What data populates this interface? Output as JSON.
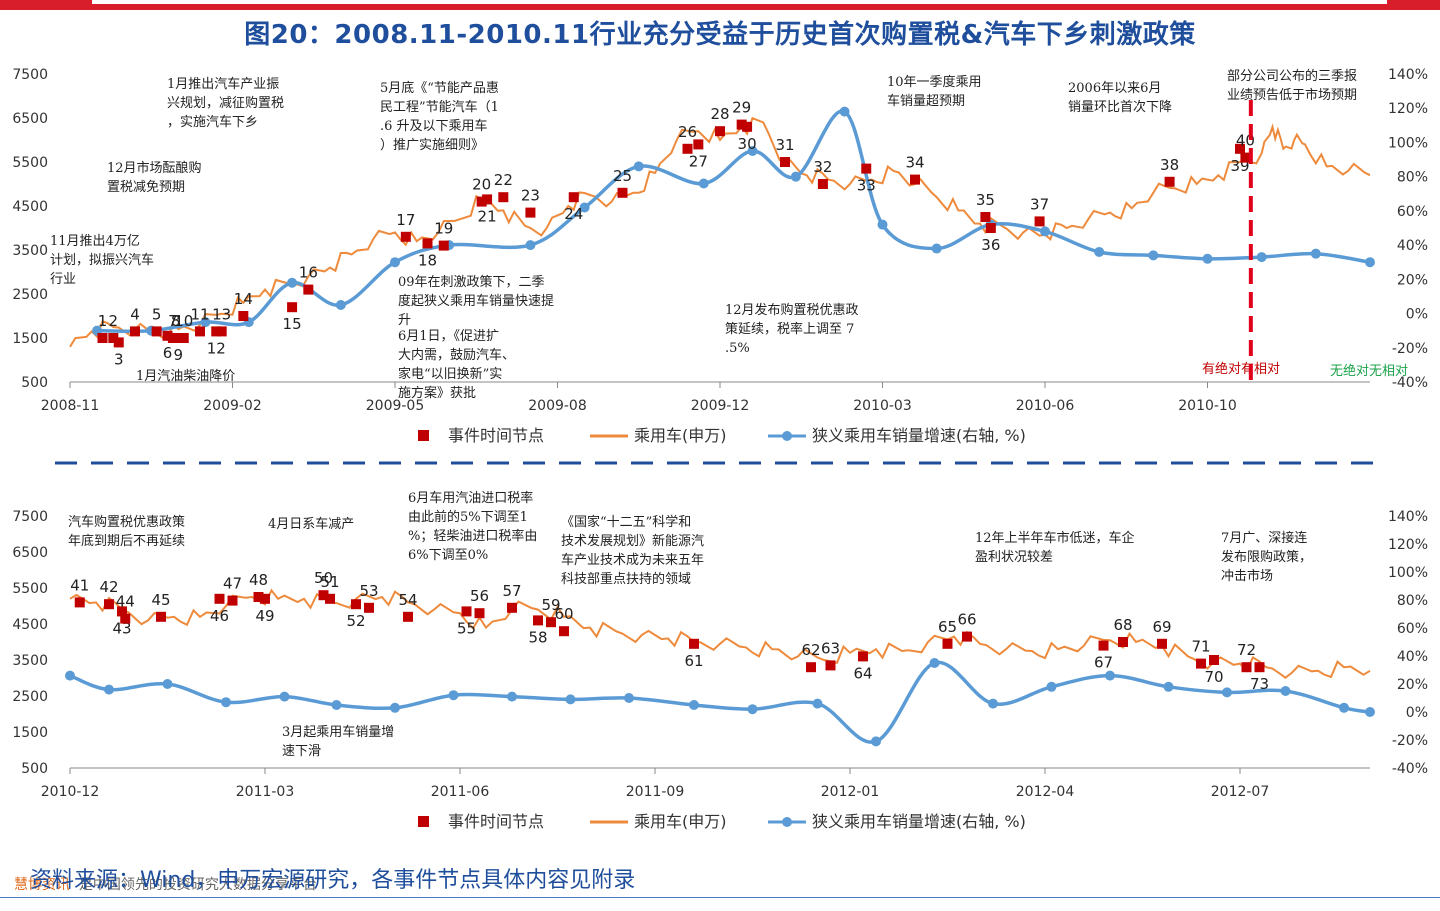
{
  "title": "图20：2008.11-2010.11行业充分受益于历史首次购置税&汽车下乡刺激政策",
  "source": "资料来源：Wind，申万宏源研究，各事件节点具体内容见附录",
  "watermark": {
    "brand": "慧博资讯",
    "text": "是中国领先的投资研究大数据分享平台"
  },
  "colors": {
    "bar": "#d81e2b",
    "title": "#1f4e9c",
    "line": "#ee8a3c",
    "growth": "#5b9bd5",
    "event": "#c00000",
    "divider": "#1f4e9c",
    "green": "#1aa24a"
  },
  "legend": [
    "事件时间节点",
    "乘用车(申万)",
    "狭义乘用车销量增速(右轴, %)"
  ],
  "chart_data": [
    {
      "type": "line",
      "left_ylim": [
        500,
        7500
      ],
      "left_yticks": [
        "7500",
        "6500",
        "5500",
        "4500",
        "3500",
        "2500",
        "1500",
        "500"
      ],
      "right_ylim": [
        -40,
        140
      ],
      "right_yticks": [
        "140%",
        "120%",
        "100%",
        "80%",
        "60%",
        "40%",
        "20%",
        "0%",
        "-20%",
        "-40%"
      ],
      "x_range_months": [
        0,
        24
      ],
      "xticks": [
        {
          "label": "2008-11",
          "m": 0
        },
        {
          "label": "2009-02",
          "m": 3
        },
        {
          "label": "2009-05",
          "m": 6
        },
        {
          "label": "2009-08",
          "m": 9
        },
        {
          "label": "2009-12",
          "m": 12
        },
        {
          "label": "2010-03",
          "m": 15
        },
        {
          "label": "2010-06",
          "m": 18
        },
        {
          "label": "2010-10",
          "m": 21
        }
      ],
      "index_series": {
        "name": "乘用车(申万)",
        "x": [
          0,
          0.4,
          0.8,
          1.2,
          1.6,
          2.0,
          2.4,
          2.8,
          3.2,
          3.6,
          4.0,
          4.4,
          4.8,
          5.2,
          5.6,
          6.0,
          6.4,
          6.8,
          7.2,
          7.6,
          8.0,
          8.4,
          8.8,
          9.2,
          9.6,
          10.0,
          10.4,
          10.8,
          11.2,
          11.6,
          12.0,
          12.4,
          12.8,
          13.2,
          13.6,
          14.0,
          14.4,
          14.8,
          15.2,
          15.6,
          16.0,
          16.4,
          16.8,
          17.2,
          17.6,
          18.0,
          18.4,
          18.8,
          19.2,
          19.6,
          20.0,
          20.4,
          20.8,
          21.2,
          21.6,
          22.0,
          22.2,
          22.4,
          22.6,
          22.8,
          23.2,
          23.6,
          24.0
        ],
        "y": [
          1300,
          1650,
          1750,
          1700,
          1600,
          1700,
          1800,
          2050,
          2300,
          2600,
          2750,
          2900,
          3100,
          3400,
          3750,
          3900,
          3700,
          3900,
          4200,
          4650,
          4400,
          4050,
          4000,
          4500,
          4750,
          4600,
          4800,
          5250,
          6000,
          6200,
          6000,
          6300,
          6400,
          5500,
          5200,
          5100,
          5000,
          5100,
          5300,
          5000,
          4700,
          4400,
          4100,
          4050,
          3900,
          3850,
          4000,
          4200,
          4350,
          4450,
          4800,
          4900,
          5000,
          5200,
          5500,
          5700,
          6300,
          5800,
          6000,
          5900,
          5400,
          5300,
          5200
        ]
      },
      "growth_series": {
        "name": "狭义乘用车销量增速(右轴, %)",
        "x": [
          0.5,
          1.5,
          2.5,
          3.3,
          4.1,
          5.0,
          6.0,
          7.0,
          8.5,
          9.5,
          10.5,
          11.7,
          12.6,
          13.4,
          14.3,
          15.0,
          16.0,
          17.0,
          18.0,
          19.0,
          20.0,
          21.0,
          22.0,
          23.0,
          24.0
        ],
        "y": [
          -10,
          -10,
          -5,
          -5,
          18,
          5,
          30,
          40,
          40,
          62,
          86,
          76,
          95,
          80,
          118,
          52,
          38,
          52,
          48,
          36,
          34,
          32,
          33,
          35,
          30
        ]
      },
      "events": [
        {
          "label": "1",
          "m": 0.6,
          "v": 1500
        },
        {
          "label": "2",
          "m": 0.8,
          "v": 1500
        },
        {
          "label": "3",
          "m": 0.9,
          "v": 1400
        },
        {
          "label": "4",
          "m": 1.2,
          "v": 1650
        },
        {
          "label": "5",
          "m": 1.6,
          "v": 1650
        },
        {
          "label": "6",
          "m": 1.8,
          "v": 1550
        },
        {
          "label": "7",
          "m": 1.9,
          "v": 1500
        },
        {
          "label": "8",
          "m": 1.95,
          "v": 1500
        },
        {
          "label": "9",
          "m": 2.0,
          "v": 1500
        },
        {
          "label": "10",
          "m": 2.1,
          "v": 1500
        },
        {
          "label": "11",
          "m": 2.4,
          "v": 1650
        },
        {
          "label": "12",
          "m": 2.7,
          "v": 1650
        },
        {
          "label": "13",
          "m": 2.8,
          "v": 1650
        },
        {
          "label": "14",
          "m": 3.2,
          "v": 2000
        },
        {
          "label": "15",
          "m": 4.1,
          "v": 2200
        },
        {
          "label": "16",
          "m": 4.4,
          "v": 2600
        },
        {
          "label": "17",
          "m": 6.2,
          "v": 3800
        },
        {
          "label": "18",
          "m": 6.6,
          "v": 3650
        },
        {
          "label": "19",
          "m": 6.9,
          "v": 3600
        },
        {
          "label": "20",
          "m": 7.6,
          "v": 4600
        },
        {
          "label": "21",
          "m": 7.7,
          "v": 4650
        },
        {
          "label": "22",
          "m": 8.0,
          "v": 4700
        },
        {
          "label": "23",
          "m": 8.5,
          "v": 4350
        },
        {
          "label": "24",
          "m": 9.3,
          "v": 4700
        },
        {
          "label": "25",
          "m": 10.2,
          "v": 4800
        },
        {
          "label": "26",
          "m": 11.4,
          "v": 5800
        },
        {
          "label": "27",
          "m": 11.6,
          "v": 5900
        },
        {
          "label": "28",
          "m": 12.0,
          "v": 6200
        },
        {
          "label": "29",
          "m": 12.4,
          "v": 6350
        },
        {
          "label": "30",
          "m": 12.5,
          "v": 6300
        },
        {
          "label": "31",
          "m": 13.2,
          "v": 5500
        },
        {
          "label": "32",
          "m": 13.9,
          "v": 5000
        },
        {
          "label": "33",
          "m": 14.7,
          "v": 5350
        },
        {
          "label": "34",
          "m": 15.6,
          "v": 5100
        },
        {
          "label": "35",
          "m": 16.9,
          "v": 4250
        },
        {
          "label": "36",
          "m": 17.0,
          "v": 4000
        },
        {
          "label": "37",
          "m": 17.9,
          "v": 4150
        },
        {
          "label": "38",
          "m": 20.3,
          "v": 5050
        },
        {
          "label": "39",
          "m": 21.6,
          "v": 5800
        },
        {
          "label": "40",
          "m": 21.7,
          "v": 5600
        }
      ],
      "marker_m": 21.8,
      "annotations": [
        "1月推出汽车产业振兴规划，减征购置税，实施汽车下乡",
        "12月市场酝酿购置税减免预期",
        "11月推出4万亿计划，拟振兴汽车行业",
        "1月汽油柴油降价",
        "5月底《“节能产品惠民工程”节能汽车（1.6 升及以下乘用车）推广实施细则》",
        "09年在刺激政策下，二季度起狭义乘用车销量快速提升",
        "6月1日，《促进扩大内需，鼓励汽车、家电“以旧换新”实施方案》获批",
        "12月发布购置税优惠政策延续，税率上调至 7.5%",
        "10年一季度乘用车销量超预期",
        "2006年以来6月销量环比首次下降",
        "部分公司公布的三季报业绩预告低于市场预期",
        "有绝对有相对",
        "无绝对无相对"
      ]
    },
    {
      "type": "line",
      "left_ylim": [
        500,
        7500
      ],
      "left_yticks": [
        "7500",
        "6500",
        "5500",
        "4500",
        "3500",
        "2500",
        "1500",
        "500"
      ],
      "right_ylim": [
        -40,
        140
      ],
      "right_yticks": [
        "140%",
        "120%",
        "100%",
        "80%",
        "60%",
        "40%",
        "20%",
        "0%",
        "-20%",
        "-40%"
      ],
      "x_range_months": [
        0,
        20
      ],
      "xticks": [
        {
          "label": "2010-12",
          "m": 0
        },
        {
          "label": "2011-03",
          "m": 3
        },
        {
          "label": "2011-06",
          "m": 6
        },
        {
          "label": "2011-09",
          "m": 9
        },
        {
          "label": "2012-01",
          "m": 12
        },
        {
          "label": "2012-04",
          "m": 15
        },
        {
          "label": "2012-07",
          "m": 18
        }
      ],
      "index_series": {
        "name": "乘用车(申万)",
        "x": [
          0,
          0.4,
          0.8,
          1.2,
          1.6,
          2.0,
          2.4,
          2.8,
          3.2,
          3.6,
          4.0,
          4.4,
          4.8,
          5.2,
          5.6,
          6.0,
          6.4,
          6.8,
          7.2,
          7.6,
          8.0,
          8.4,
          8.8,
          9.2,
          9.6,
          10.0,
          10.4,
          10.8,
          11.2,
          11.6,
          12.0,
          12.4,
          12.8,
          13.2,
          13.6,
          14.0,
          14.4,
          14.8,
          15.2,
          15.6,
          16.0,
          16.4,
          16.8,
          17.2,
          17.6,
          18.0,
          18.4,
          18.8,
          19.2,
          19.6,
          20.0
        ],
        "y": [
          5200,
          5100,
          4900,
          4600,
          4700,
          4700,
          5000,
          5250,
          5200,
          5200,
          5100,
          5200,
          5250,
          5100,
          4900,
          4800,
          4400,
          4900,
          4900,
          4700,
          4400,
          4300,
          4200,
          4100,
          4000,
          3950,
          3850,
          3800,
          3600,
          3500,
          3700,
          3800,
          3750,
          4000,
          4150,
          3950,
          3800,
          3750,
          3800,
          3900,
          4050,
          4000,
          3900,
          3600,
          3450,
          3400,
          3300,
          3150,
          3200,
          3300,
          3200
        ]
      },
      "growth_series": {
        "name": "狭义乘用车销量增速(右轴, %)",
        "x": [
          0,
          0.6,
          1.5,
          2.4,
          3.3,
          4.1,
          5.0,
          5.9,
          6.8,
          7.7,
          8.6,
          9.6,
          10.5,
          11.5,
          12.4,
          13.3,
          14.2,
          15.1,
          16.0,
          16.9,
          17.8,
          18.7,
          19.6,
          20.0
        ],
        "y": [
          26,
          16,
          20,
          7,
          11,
          5,
          3,
          12,
          11,
          9,
          10,
          5,
          2,
          6,
          -21,
          35,
          6,
          18,
          26,
          18,
          14,
          15,
          3,
          0
        ]
      },
      "events": [
        {
          "label": "41",
          "m": 0.15,
          "v": 5100
        },
        {
          "label": "42",
          "m": 0.6,
          "v": 5050
        },
        {
          "label": "43",
          "m": 0.8,
          "v": 4850
        },
        {
          "label": "44",
          "m": 0.85,
          "v": 4650
        },
        {
          "label": "45",
          "m": 1.4,
          "v": 4700
        },
        {
          "label": "46",
          "m": 2.3,
          "v": 5200
        },
        {
          "label": "47",
          "m": 2.5,
          "v": 5150
        },
        {
          "label": "48",
          "m": 2.9,
          "v": 5250
        },
        {
          "label": "49",
          "m": 3.0,
          "v": 5200
        },
        {
          "label": "50",
          "m": 3.9,
          "v": 5300
        },
        {
          "label": "51",
          "m": 4.0,
          "v": 5200
        },
        {
          "label": "52",
          "m": 4.4,
          "v": 5050
        },
        {
          "label": "53",
          "m": 4.6,
          "v": 4950
        },
        {
          "label": "54",
          "m": 5.2,
          "v": 4700
        },
        {
          "label": "55",
          "m": 6.1,
          "v": 4850
        },
        {
          "label": "56",
          "m": 6.3,
          "v": 4800
        },
        {
          "label": "57",
          "m": 6.8,
          "v": 4950
        },
        {
          "label": "58",
          "m": 7.2,
          "v": 4600
        },
        {
          "label": "59",
          "m": 7.4,
          "v": 4550
        },
        {
          "label": "60",
          "m": 7.6,
          "v": 4300
        },
        {
          "label": "61",
          "m": 9.6,
          "v": 3950
        },
        {
          "label": "62",
          "m": 11.4,
          "v": 3300
        },
        {
          "label": "63",
          "m": 11.7,
          "v": 3350
        },
        {
          "label": "64",
          "m": 12.2,
          "v": 3600
        },
        {
          "label": "65",
          "m": 13.5,
          "v": 3950
        },
        {
          "label": "66",
          "m": 13.8,
          "v": 4150
        },
        {
          "label": "67",
          "m": 15.9,
          "v": 3900
        },
        {
          "label": "68",
          "m": 16.2,
          "v": 4000
        },
        {
          "label": "69",
          "m": 16.8,
          "v": 3950
        },
        {
          "label": "70",
          "m": 17.6,
          "v": 3500
        },
        {
          "label": "71",
          "m": 17.4,
          "v": 3400
        },
        {
          "label": "72",
          "m": 18.1,
          "v": 3300
        },
        {
          "label": "73",
          "m": 18.3,
          "v": 3300
        }
      ],
      "annotations": [
        "汽车购置税优惠政策年底到期后不再延续",
        "4月日系车减产",
        "6月车用汽油进口税率由此前的5%下调至1%；轻柴油进口税率由6%下调至0%",
        "《国家“十二五”科学和技术发展规划》新能源汽车产业技术成为未来五年科技部重点扶持的领域",
        "3月起乘用车销量增速下滑",
        "12年上半年车市低迷，车企盈利状况较差",
        "7月广、深接连发布限购政策，冲击市场"
      ]
    }
  ]
}
